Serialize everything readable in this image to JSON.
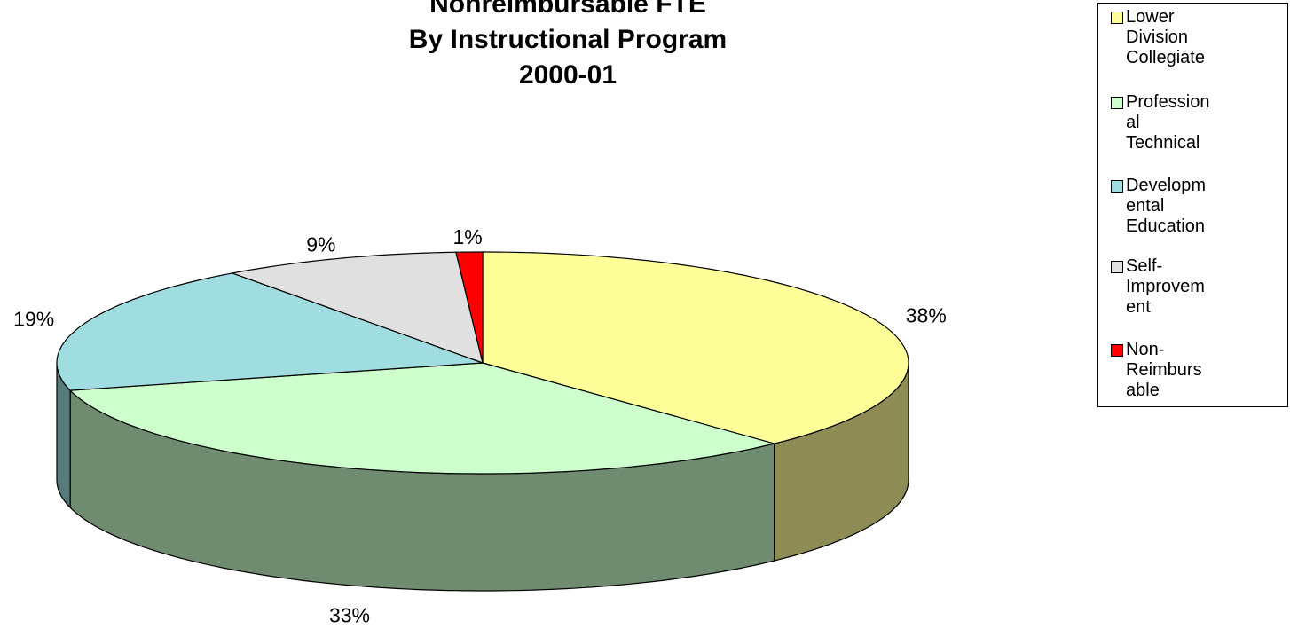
{
  "chart_data": {
    "type": "pie3d",
    "title": [
      "Nonreimbursable FTE",
      "By Instructional Program",
      "2000-01"
    ],
    "categories": [
      "Lower Division Collegiate",
      "Professional Technical",
      "Developmental Education",
      "Self-Improvement",
      "Non-Reimbursable"
    ],
    "values": [
      38,
      33,
      19,
      9,
      1
    ],
    "value_labels": [
      "38%",
      "33%",
      "19%",
      "9%",
      "1%"
    ],
    "colors": [
      "#ffff99",
      "#ccffcc",
      "#a0dde0",
      "#e0e0e0",
      "#ff0000"
    ],
    "legend": "right"
  }
}
